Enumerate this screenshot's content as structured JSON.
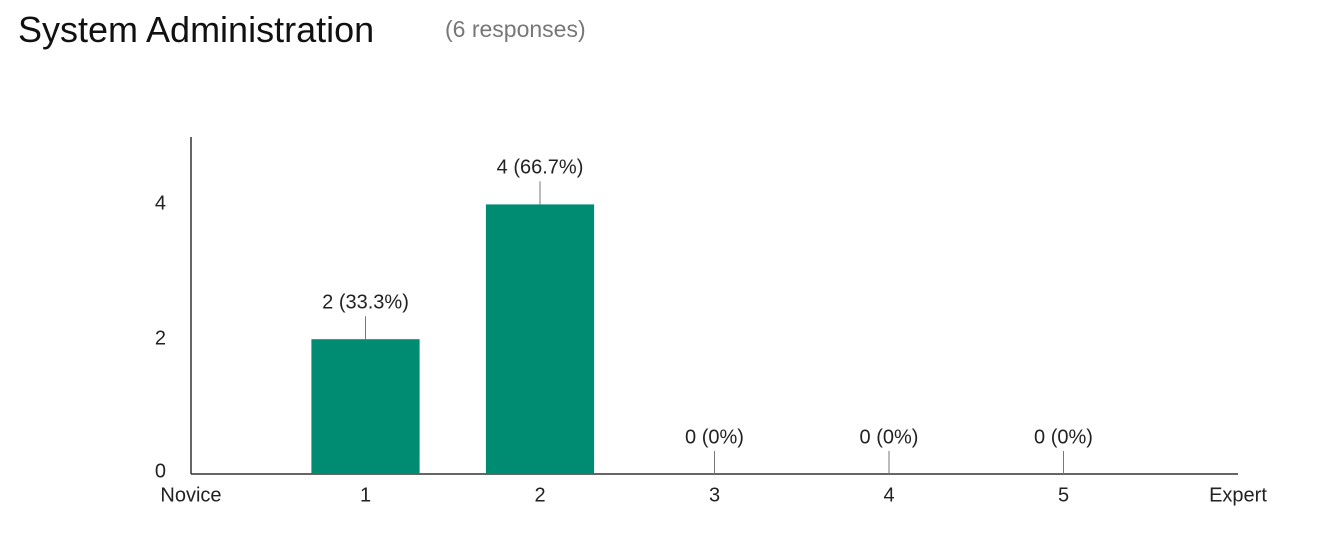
{
  "chart_data": {
    "type": "bar",
    "title": "System Administration",
    "subtitle": "(6 responses)",
    "x": [
      1,
      2,
      3,
      4,
      5
    ],
    "values": [
      2,
      4,
      0,
      0,
      0
    ],
    "value_labels": [
      "2 (33.3%)",
      "4 (66.7%)",
      "0 (0%)",
      "0 (0%)",
      "0 (0%)"
    ],
    "color": "#008c72",
    "xlim": [
      0,
      6
    ],
    "xticks": [
      {
        "value": 0,
        "label": "Novice"
      },
      1,
      2,
      3,
      4,
      5,
      {
        "value": 6,
        "label": "Expert"
      }
    ],
    "ylim": [
      0,
      5
    ],
    "yticks": [
      0,
      2,
      4
    ],
    "grid": false
  }
}
